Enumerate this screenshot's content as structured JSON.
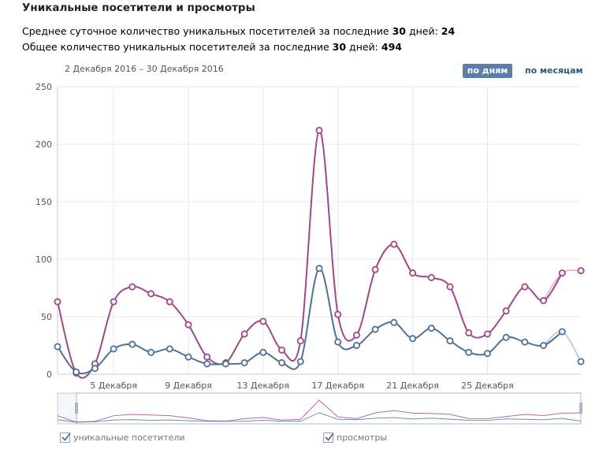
{
  "header": {
    "title": "Уникальные посетители и просмотры",
    "avg_prefix": "Среднее суточное количество уникальных посетителей за последние ",
    "avg_days": "30",
    "avg_mid": " дней: ",
    "avg_value": "24",
    "total_prefix": "Общее количество уникальных посетителей за последние ",
    "total_days": "30",
    "total_mid": " дней: ",
    "total_value": "494"
  },
  "controls": {
    "date_range": "2 Декабря 2016 – 30 Декабря 2016",
    "by_days": "по дням",
    "by_months": "по месяцам"
  },
  "legend": {
    "visitors": "уникальные посетители",
    "views": "просмотры"
  },
  "colors": {
    "visitors": "#4f7198",
    "views": "#a0478a",
    "active_button": "#5b7fa6"
  },
  "chart_data": {
    "type": "line",
    "x": [
      "2016-12-02",
      "2016-12-03",
      "2016-12-04",
      "2016-12-05",
      "2016-12-06",
      "2016-12-07",
      "2016-12-08",
      "2016-12-09",
      "2016-12-10",
      "2016-12-11",
      "2016-12-12",
      "2016-12-13",
      "2016-12-14",
      "2016-12-15",
      "2016-12-16",
      "2016-12-17",
      "2016-12-18",
      "2016-12-19",
      "2016-12-20",
      "2016-12-21",
      "2016-12-22",
      "2016-12-23",
      "2016-12-24",
      "2016-12-25",
      "2016-12-26",
      "2016-12-27",
      "2016-12-28",
      "2016-12-29",
      "2016-12-30"
    ],
    "x_tick_labels": [
      "5 Декабря",
      "9 Декабря",
      "13 Декабря",
      "17 Декабря",
      "21 Декабря",
      "25 Декабря"
    ],
    "x_tick_indices": [
      3,
      7,
      11,
      15,
      19,
      23
    ],
    "ylim": [
      0,
      250
    ],
    "y_ticks": [
      0,
      50,
      100,
      150,
      200,
      250
    ],
    "grid": true,
    "series": [
      {
        "name": "уникальные посетители",
        "values": [
          24,
          2,
          5,
          22,
          26,
          19,
          22,
          15,
          9,
          9,
          10,
          19,
          10,
          11,
          92,
          28,
          25,
          39,
          45,
          31,
          40,
          29,
          19,
          18,
          32,
          28,
          25,
          37,
          11
        ]
      },
      {
        "name": "просмотры",
        "values": [
          63,
          1,
          9,
          63,
          76,
          70,
          63,
          43,
          15,
          10,
          35,
          46,
          21,
          29,
          212,
          52,
          34,
          91,
          113,
          88,
          84,
          76,
          36,
          35,
          55,
          76,
          64,
          88,
          90
        ]
      }
    ]
  }
}
